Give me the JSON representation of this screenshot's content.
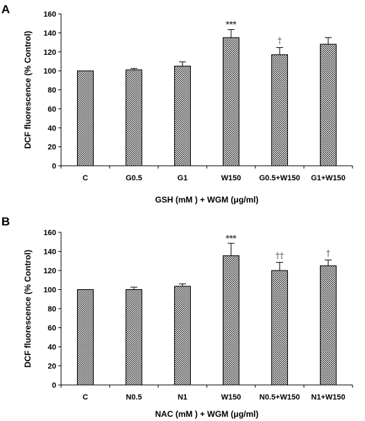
{
  "chart_data": [
    {
      "type": "bar",
      "panel_label": "A",
      "categories": [
        "C",
        "G0.5",
        "G1",
        "W150",
        "G0.5+W150",
        "G1+W150"
      ],
      "series": [
        {
          "values": [
            100,
            101,
            105,
            135,
            117,
            128
          ],
          "errors": [
            0,
            1.5,
            4.5,
            8.5,
            7.5,
            7
          ]
        }
      ],
      "annotations": [
        "",
        "",
        "",
        "***",
        "†",
        ""
      ],
      "xlabel": "GSH (mM ) + WGM (μg/ml)",
      "ylabel": "DCF fluorescence (% Control)",
      "ylim": [
        0,
        160
      ],
      "yticks": [
        0,
        20,
        40,
        60,
        80,
        100,
        120,
        140,
        160
      ],
      "bar_fill": "crosshatch",
      "grid": false,
      "colors": {
        "bar": "#3a3a3a",
        "hatch_bg": "#ffffff",
        "annotation": "#444444"
      }
    },
    {
      "type": "bar",
      "panel_label": "B",
      "categories": [
        "C",
        "N0.5",
        "N1",
        "W150",
        "N0.5+W150",
        "N1+W150"
      ],
      "series": [
        {
          "values": [
            100,
            100,
            103.5,
            135.5,
            120,
            125
          ],
          "errors": [
            0,
            2.5,
            2.5,
            13,
            8.5,
            6
          ]
        }
      ],
      "annotations": [
        "",
        "",
        "",
        "***",
        "††",
        "†"
      ],
      "xlabel": "NAC (mM ) + WGM (μg/ml)",
      "ylabel": "DCF fluorescence (% Control)",
      "ylim": [
        0,
        160
      ],
      "yticks": [
        0,
        20,
        40,
        60,
        80,
        100,
        120,
        140,
        160
      ],
      "bar_fill": "crosshatch",
      "grid": false,
      "colors": {
        "bar": "#3a3a3a",
        "hatch_bg": "#ffffff",
        "annotation": "#444444"
      }
    }
  ]
}
